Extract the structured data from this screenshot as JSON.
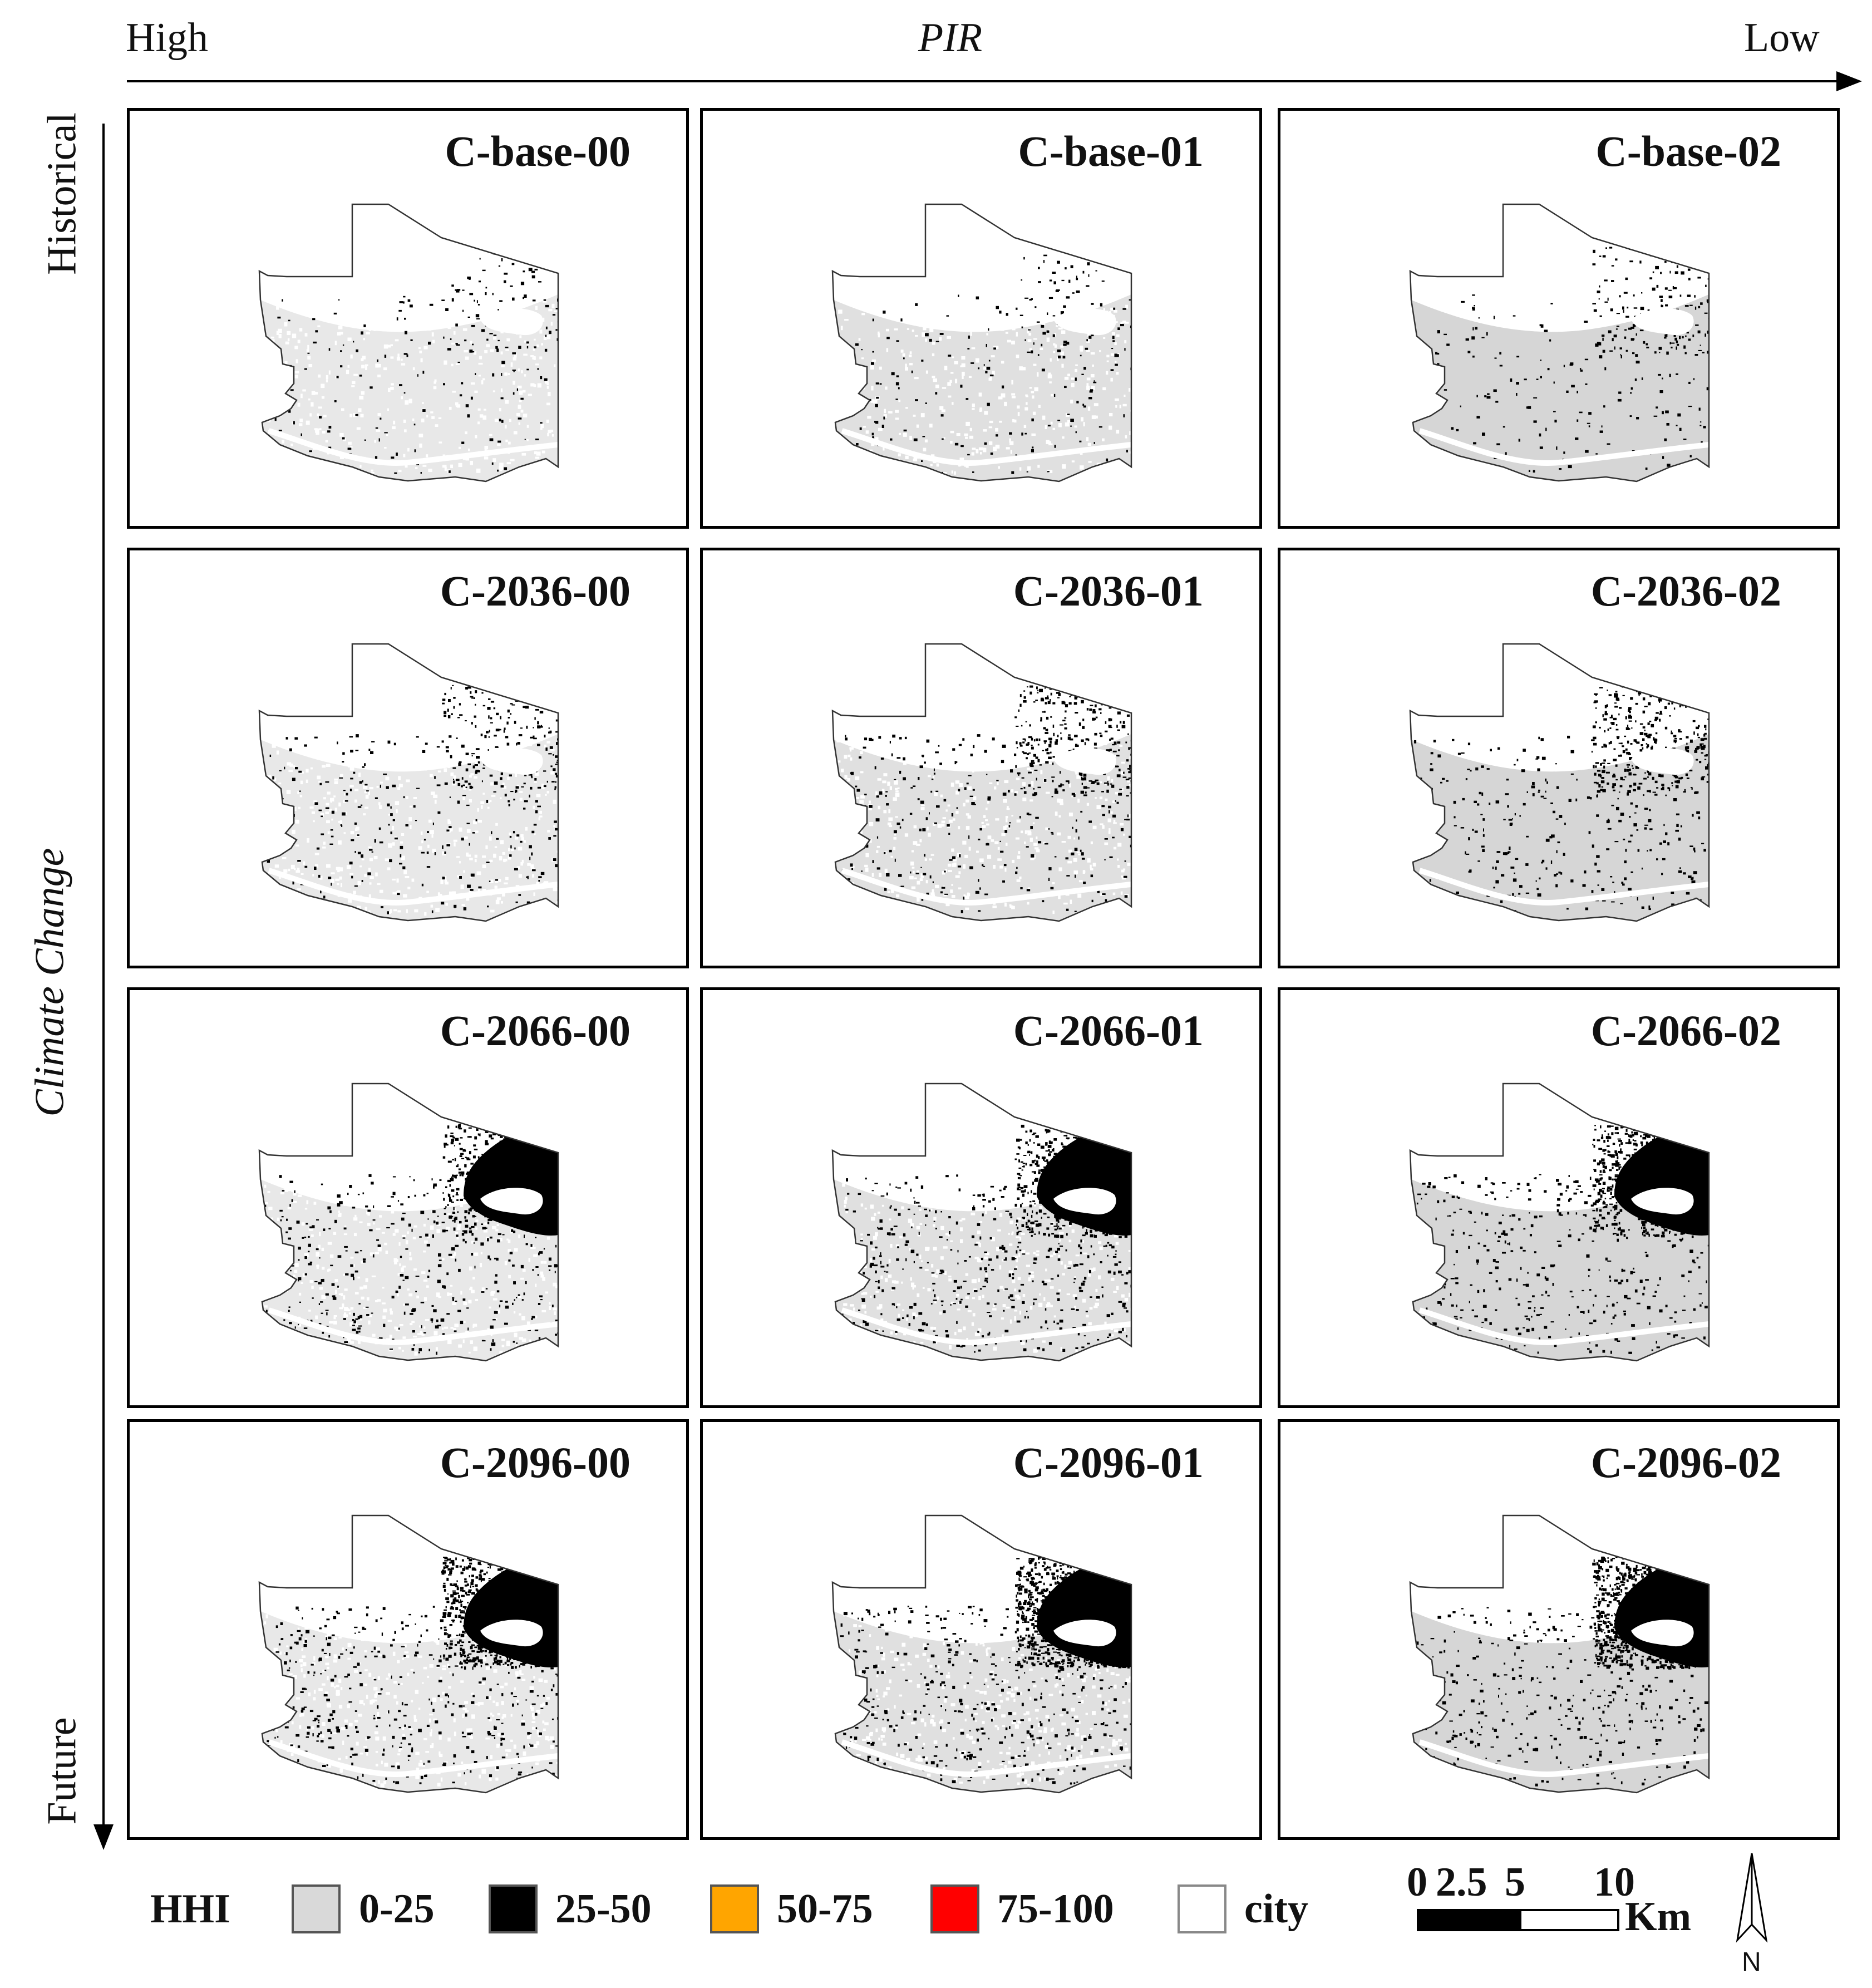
{
  "axes": {
    "horizontal": {
      "left_label": "High",
      "center_label": "PIR",
      "right_label": "Low"
    },
    "vertical": {
      "top_label": "Historical",
      "center_label": "Climate Change",
      "bottom_label": "Future"
    }
  },
  "panels": [
    {
      "title": "C-base-00",
      "hazard_level": 0.1,
      "base_fill": 0.0
    },
    {
      "title": "C-base-01",
      "hazard_level": 0.12,
      "base_fill": 0.35
    },
    {
      "title": "C-base-02",
      "hazard_level": 0.18,
      "base_fill": 1.0
    },
    {
      "title": "C-2036-00",
      "hazard_level": 0.25,
      "base_fill": 0.0
    },
    {
      "title": "C-2036-01",
      "hazard_level": 0.35,
      "base_fill": 0.35
    },
    {
      "title": "C-2036-02",
      "hazard_level": 0.4,
      "base_fill": 1.0
    },
    {
      "title": "C-2066-00",
      "hazard_level": 0.5,
      "base_fill": 0.0
    },
    {
      "title": "C-2066-01",
      "hazard_level": 0.6,
      "base_fill": 0.35
    },
    {
      "title": "C-2066-02",
      "hazard_level": 0.65,
      "base_fill": 1.0
    },
    {
      "title": "C-2096-00",
      "hazard_level": 0.75,
      "base_fill": 0.0
    },
    {
      "title": "C-2096-01",
      "hazard_level": 0.88,
      "base_fill": 0.35
    },
    {
      "title": "C-2096-02",
      "hazard_level": 0.92,
      "base_fill": 1.0
    }
  ],
  "legend": {
    "title": "HHI",
    "items": [
      {
        "label": "0-25",
        "color": "#d9d9d9"
      },
      {
        "label": "25-50",
        "color": "#000000"
      },
      {
        "label": "50-75",
        "color": "#ffa500"
      },
      {
        "label": "75-100",
        "color": "#ff0000"
      },
      {
        "label": "city",
        "color": "#ffffff"
      }
    ]
  },
  "scale_bar": {
    "ticks": [
      "0",
      "2.5",
      "5",
      "10"
    ],
    "unit": "Km"
  },
  "north_arrow": {
    "label": "N"
  }
}
